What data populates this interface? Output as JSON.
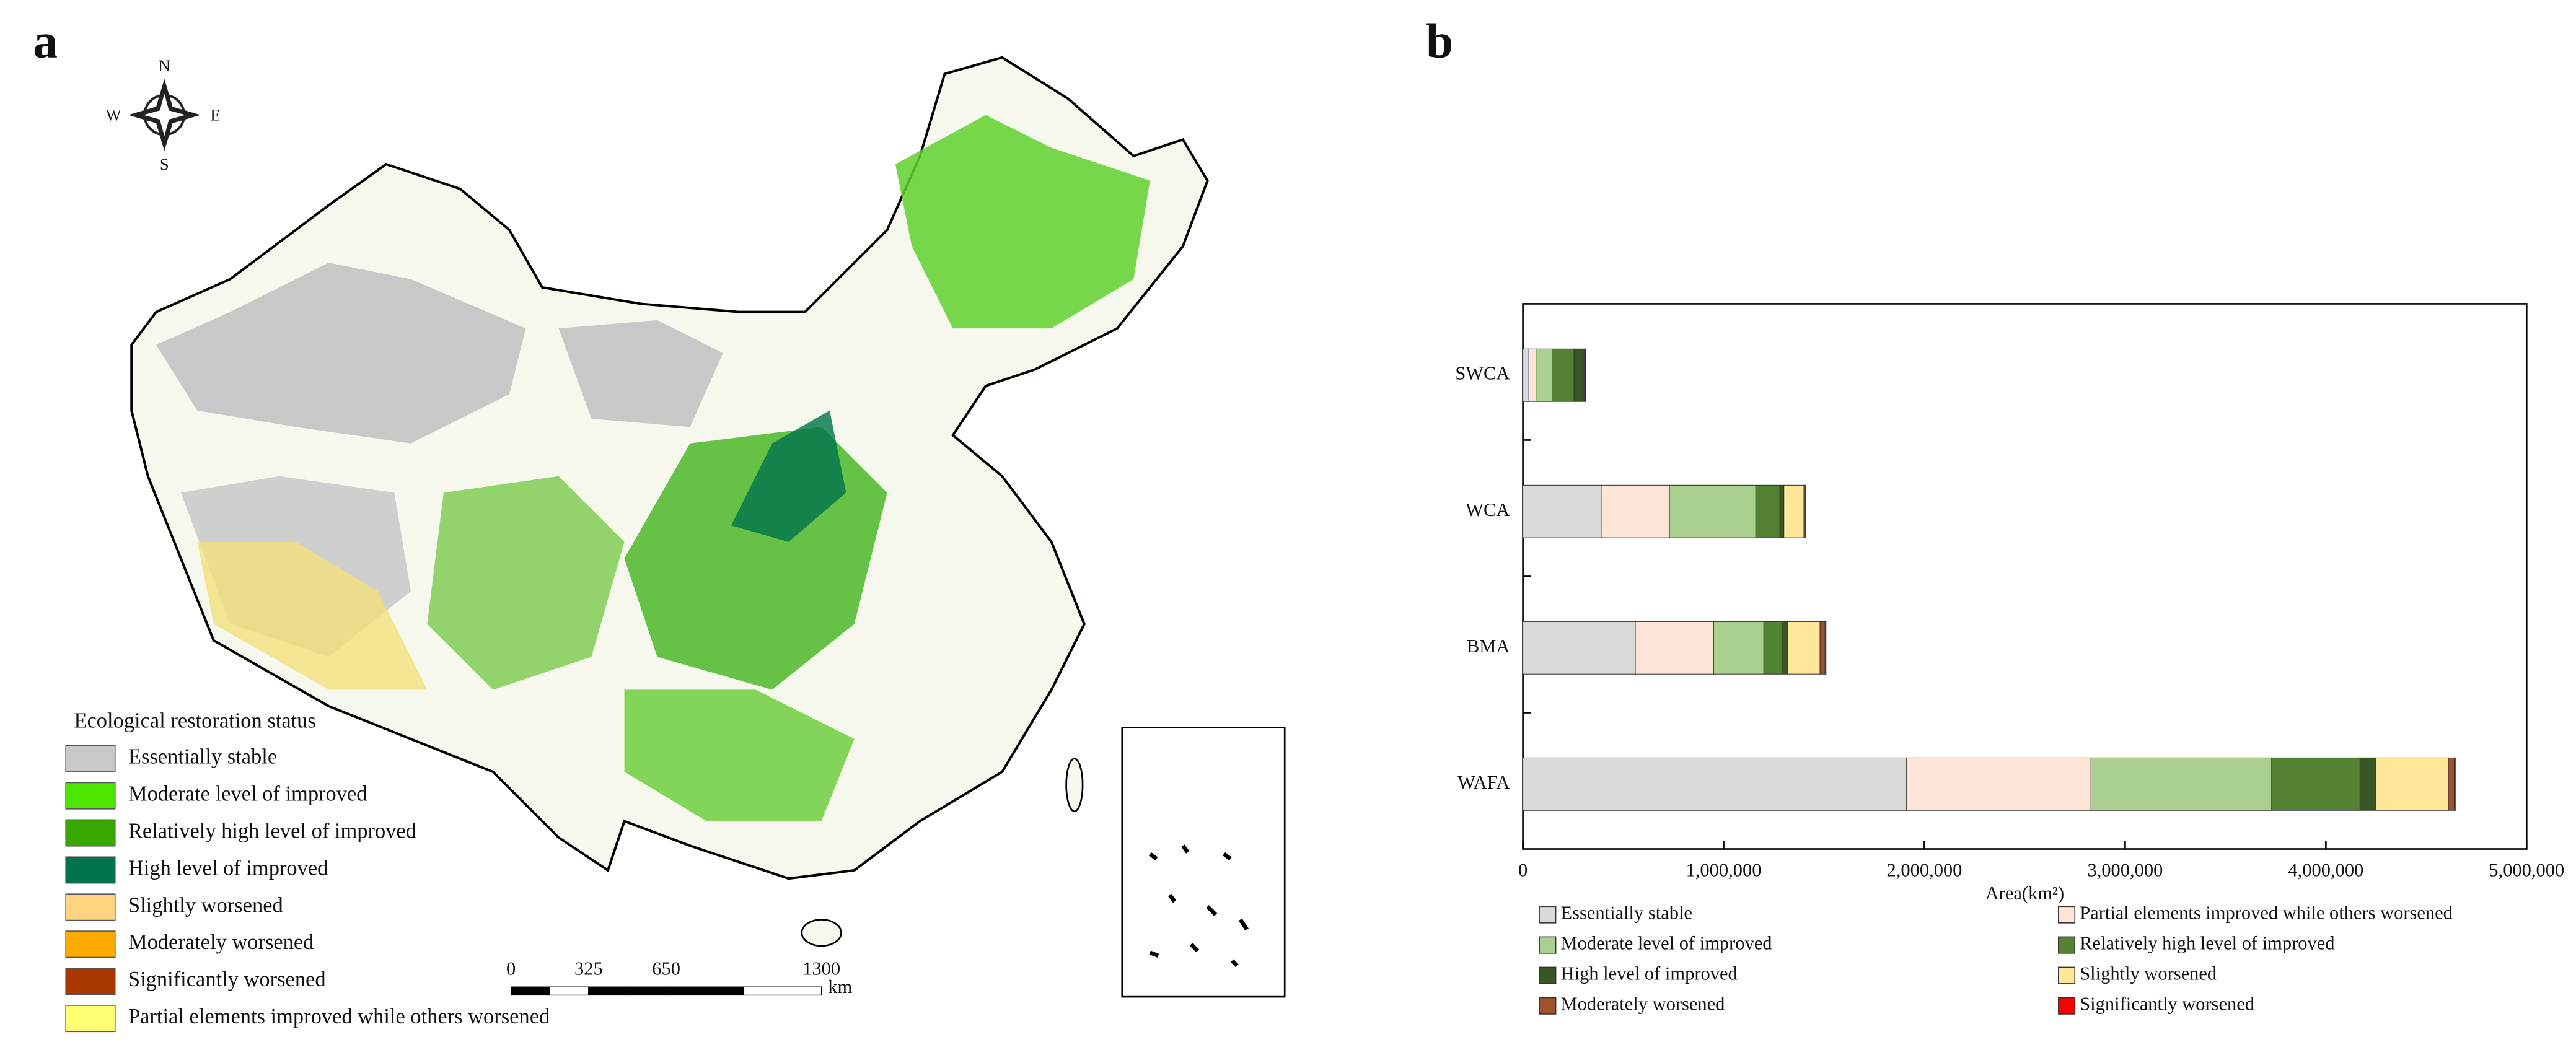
{
  "panel_a": {
    "label": "a",
    "compass": {
      "N": "N",
      "E": "E",
      "S": "S",
      "W": "W"
    },
    "legend_title": "Ecological restoration status",
    "legend": [
      {
        "name": "Essentially stable",
        "color": "#c8c8c8"
      },
      {
        "name": "Moderate level of improved",
        "color": "#4ce600"
      },
      {
        "name": "Relatively high level of improved",
        "color": "#38a800"
      },
      {
        "name": "High level of improved",
        "color": "#00734c"
      },
      {
        "name": "Slightly worsened",
        "color": "#ffd37f"
      },
      {
        "name": "Moderately worsened",
        "color": "#ffaa00"
      },
      {
        "name": "Significantly worsened",
        "color": "#a83800"
      },
      {
        "name": "Partial elements improved while others worsened",
        "color": "#ffff73"
      }
    ],
    "scale_bar": {
      "ticks": [
        0,
        325,
        650,
        1300
      ],
      "unit": "km"
    }
  },
  "chart_data": {
    "type": "bar",
    "orientation": "horizontal",
    "stacked": true,
    "panel_label": "b",
    "categories": [
      "SWCA",
      "WCA",
      "BMA",
      "WAFA"
    ],
    "series": [
      {
        "name": "Essentially stable",
        "color": "#d9d9d9",
        "values": [
          30000,
          390000,
          560000,
          1910000
        ]
      },
      {
        "name": "Partial elements improved while others worsened",
        "color": "#fce4d6",
        "values": [
          35000,
          340000,
          390000,
          920000
        ]
      },
      {
        "name": "Moderate level of improved",
        "color": "#a9d08e",
        "values": [
          80000,
          430000,
          250000,
          900000
        ]
      },
      {
        "name": "Relatively high level of improved",
        "color": "#548235",
        "values": [
          110000,
          120000,
          90000,
          440000
        ]
      },
      {
        "name": "High level of improved",
        "color": "#375623",
        "values": [
          50000,
          20000,
          30000,
          80000
        ]
      },
      {
        "name": "Slightly worsened",
        "color": "#ffe699",
        "values": [
          5000,
          100000,
          160000,
          360000
        ]
      },
      {
        "name": "Moderately worsened",
        "color": "#a0522d",
        "values": [
          3000,
          5000,
          25000,
          30000
        ]
      },
      {
        "name": "Significantly worsened",
        "color": "#ff0000",
        "values": [
          1000,
          2000,
          5000,
          5000
        ]
      }
    ],
    "xlim": [
      0,
      5000000
    ],
    "xticks": [
      0,
      {
        "value": 1000000,
        "label": "1,000,000"
      },
      {
        "value": 2000000,
        "label": "2,000,000"
      },
      {
        "value": 3000000,
        "label": "3,000,000"
      },
      {
        "value": 4000000,
        "label": "4,000,000"
      },
      {
        "value": 5000000,
        "label": "5,000,000"
      }
    ],
    "x_label": "Area(km²)"
  }
}
